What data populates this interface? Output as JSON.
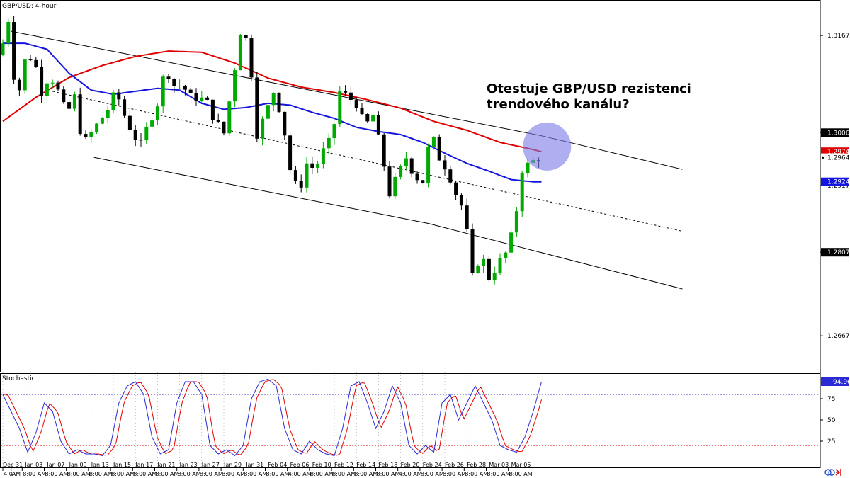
{
  "chart_data": {
    "type": "candlestick",
    "symbol_label": "GBP/USD: 4-hour",
    "annotation": [
      "Otestuje GBP/USD rezistenci",
      "trendového kanálu?"
    ],
    "ylim": [
      1.2608,
      1.3227
    ],
    "price_ticks": [
      "1.31679",
      "1.30062",
      "1.29179",
      "1.28070",
      "1.26679"
    ],
    "price_labels": [
      {
        "value": 1.30062,
        "text": "1.30062",
        "color": "#ffffff",
        "bg": "#000000"
      },
      {
        "value": 1.29744,
        "text": "1.29744",
        "color": "#ffffff",
        "bg": "#e00000"
      },
      {
        "value": 1.29645,
        "text": "1.29645",
        "color": "#000000",
        "bg": "#ffffff",
        "marker": true
      },
      {
        "value": 1.29243,
        "text": "1.29243",
        "color": "#ffffff",
        "bg": "#1515e0"
      },
      {
        "value": 1.2807,
        "text": "1.28070",
        "color": "#ffffff",
        "bg": "#000000"
      }
    ],
    "date_ticks": [
      {
        "label": "Dec 31",
        "x": 0
      },
      {
        "label": "Jan 03",
        "x": 4
      },
      {
        "label": "Jan 07",
        "x": 8
      },
      {
        "label": "Jan 09",
        "x": 12
      },
      {
        "label": "Jan 13",
        "x": 16
      },
      {
        "label": "Jan 15",
        "x": 20
      },
      {
        "label": "Jan 17",
        "x": 24
      },
      {
        "label": "Jan 21",
        "x": 28
      },
      {
        "label": "Jan 23",
        "x": 32
      },
      {
        "label": "Jan 27",
        "x": 36
      },
      {
        "label": "Jan 29",
        "x": 40
      },
      {
        "label": "Jan 31",
        "x": 44
      },
      {
        "label": "Feb 04",
        "x": 48
      },
      {
        "label": "Feb 06",
        "x": 52
      },
      {
        "label": "Feb 10",
        "x": 56
      },
      {
        "label": "Feb 12",
        "x": 60
      },
      {
        "label": "Feb 14",
        "x": 64
      },
      {
        "label": "Feb 18",
        "x": 68
      },
      {
        "label": "Feb 20",
        "x": 72
      },
      {
        "label": "Feb 24",
        "x": 76
      },
      {
        "label": "Feb 26",
        "x": 80
      },
      {
        "label": "Feb 28",
        "x": 84
      },
      {
        "label": "Mar 03",
        "x": 88
      },
      {
        "label": "Mar 05",
        "x": 92
      }
    ],
    "time_ticks": [
      {
        "label": "4:0",
        "x": 0
      },
      {
        "label": "AM",
        "x": 1.5
      },
      {
        "label": "8:00 AM",
        "x": 3.5
      },
      {
        "label": "8:00 AM",
        "x": 7.5
      },
      {
        "label": "8:00 AM",
        "x": 11.5
      },
      {
        "label": "8:00 AM",
        "x": 15.5
      },
      {
        "label": "8:00 AM",
        "x": 19.5
      },
      {
        "label": "8:00 AM",
        "x": 23.5
      },
      {
        "label": "8:00 AM",
        "x": 27.5
      },
      {
        "label": "8:00 AM",
        "x": 31.5
      },
      {
        "label": "8:00 AM",
        "x": 35.5
      },
      {
        "label": "8:00 AM",
        "x": 39.5
      },
      {
        "label": "8:00 AM",
        "x": 43.5
      },
      {
        "label": "8:00 AM",
        "x": 47.5
      },
      {
        "label": "4:00 AM",
        "x": 51.5
      },
      {
        "label": "8:00 AM",
        "x": 55.5
      },
      {
        "label": "8:00 AM",
        "x": 59.5
      },
      {
        "label": "8:00 AM",
        "x": 63.5
      },
      {
        "label": "8:00 AM",
        "x": 67.5
      },
      {
        "label": "4:00 AM",
        "x": 71.5
      },
      {
        "label": "8:00 AM",
        "x": 75.5
      },
      {
        "label": "8:00 AM",
        "x": 79.5
      },
      {
        "label": "8:00 AM",
        "x": 83.5
      },
      {
        "label": "8:00 AM",
        "x": 87.5
      },
      {
        "label": "8:00 AM",
        "x": 91.5
      }
    ],
    "close_anchors": [
      [
        0,
        1.3135
      ],
      [
        1.5,
        1.3195
      ],
      [
        3,
        1.3055
      ],
      [
        4.5,
        1.3125
      ],
      [
        6,
        1.3135
      ],
      [
        7.5,
        1.3075
      ],
      [
        9,
        1.3105
      ],
      [
        10.5,
        1.3075
      ],
      [
        12,
        1.3035
      ],
      [
        13.5,
        1.3065
      ],
      [
        15,
        1.2985
      ],
      [
        16.5,
        1.3005
      ],
      [
        18,
        1.3025
      ],
      [
        19.5,
        1.3045
      ],
      [
        21,
        1.3075
      ],
      [
        22.5,
        1.3035
      ],
      [
        24,
        1.3005
      ],
      [
        25.5,
        1.2985
      ],
      [
        27,
        1.3025
      ],
      [
        28.5,
        1.3055
      ],
      [
        30,
        1.3115
      ],
      [
        31.5,
        1.3085
      ],
      [
        33,
        1.3085
      ],
      [
        34.5,
        1.3065
      ],
      [
        36,
        1.3065
      ],
      [
        37.5,
        1.3055
      ],
      [
        39,
        1.3025
      ],
      [
        40.5,
        1.3005
      ],
      [
        42,
        1.3085
      ],
      [
        43.5,
        1.3175
      ],
      [
        45,
        1.3155
      ],
      [
        46.5,
        1.3005
      ],
      [
        48,
        1.3035
      ],
      [
        49.5,
        1.3075
      ],
      [
        51,
        1.3035
      ],
      [
        52.5,
        1.2945
      ],
      [
        54,
        1.2905
      ],
      [
        55.5,
        1.2955
      ],
      [
        57,
        1.2945
      ],
      [
        58.5,
        1.2975
      ],
      [
        60,
        1.2995
      ],
      [
        61.5,
        1.3075
      ],
      [
        63,
        1.3065
      ],
      [
        64.5,
        1.3055
      ],
      [
        66,
        1.3015
      ],
      [
        67.5,
        1.3035
      ],
      [
        69,
        1.2975
      ],
      [
        70.5,
        1.2905
      ],
      [
        72,
        1.2935
      ],
      [
        73.5,
        1.2965
      ],
      [
        75,
        1.2935
      ],
      [
        76.5,
        1.2925
      ],
      [
        78,
        1.3005
      ],
      [
        79.5,
        1.2965
      ],
      [
        81,
        1.2945
      ],
      [
        82.5,
        1.2905
      ],
      [
        84,
        1.2875
      ],
      [
        85.5,
        1.2765
      ],
      [
        87,
        1.2805
      ],
      [
        88.5,
        1.2765
      ],
      [
        90,
        1.2785
      ],
      [
        91.5,
        1.2805
      ],
      [
        93,
        1.2845
      ],
      [
        94.5,
        1.2945
      ],
      [
        96,
        1.2955
      ],
      [
        97.5,
        1.2965
      ]
    ],
    "ma_red": [
      [
        0,
        1.3025
      ],
      [
        6,
        1.3065
      ],
      [
        12,
        1.3098
      ],
      [
        18,
        1.3118
      ],
      [
        24,
        1.3133
      ],
      [
        30,
        1.3142
      ],
      [
        36,
        1.314
      ],
      [
        42,
        1.3122
      ],
      [
        48,
        1.3097
      ],
      [
        54,
        1.3082
      ],
      [
        60,
        1.3073
      ],
      [
        66,
        1.3061
      ],
      [
        72,
        1.3047
      ],
      [
        78,
        1.3025
      ],
      [
        84,
        1.301
      ],
      [
        90,
        1.299
      ],
      [
        96,
        1.2978
      ],
      [
        97.5,
        1.29744
      ]
    ],
    "ma_blue": [
      [
        0,
        1.3155
      ],
      [
        4,
        1.3155
      ],
      [
        8,
        1.3145
      ],
      [
        12,
        1.3105
      ],
      [
        16,
        1.3077
      ],
      [
        20,
        1.307
      ],
      [
        24,
        1.3075
      ],
      [
        28,
        1.308
      ],
      [
        32,
        1.3077
      ],
      [
        36,
        1.3055
      ],
      [
        40,
        1.3045
      ],
      [
        44,
        1.3048
      ],
      [
        48,
        1.3055
      ],
      [
        52,
        1.3052
      ],
      [
        56,
        1.304
      ],
      [
        60,
        1.303
      ],
      [
        64,
        1.3015
      ],
      [
        68,
        1.3008
      ],
      [
        72,
        1.3003
      ],
      [
        76,
        1.299
      ],
      [
        80,
        1.2972
      ],
      [
        84,
        1.2955
      ],
      [
        88,
        1.2942
      ],
      [
        92,
        1.2928
      ],
      [
        96,
        1.29243
      ],
      [
        97.5,
        1.29243
      ]
    ],
    "channel_upper": [
      [
        1.5,
        1.3175
      ],
      [
        97.5,
        1.3001
      ],
      [
        123,
        1.2945
      ]
    ],
    "channel_lower": [
      [
        16.5,
        1.2965
      ],
      [
        77,
        1.2855
      ],
      [
        123,
        1.2746
      ]
    ],
    "channel_mid": [
      [
        9,
        1.3075
      ],
      [
        123,
        1.2842
      ]
    ],
    "highlight_circle": {
      "x": 98.5,
      "price": 1.2983,
      "color": "#7a78e8",
      "opacity": 0.6
    },
    "stochastic": {
      "label": "Stochastic",
      "current_value": "94.96",
      "ylim": [
        0,
        100
      ],
      "tick_labels": [
        "75",
        "50",
        "25"
      ],
      "levels": [
        {
          "value": 80,
          "color": "#3d3dcc"
        },
        {
          "value": 20,
          "color": "#e00000"
        }
      ],
      "main_anchors": [
        [
          0,
          80
        ],
        [
          1.5,
          60
        ],
        [
          3,
          40
        ],
        [
          4.5,
          12
        ],
        [
          6,
          35
        ],
        [
          7.5,
          70
        ],
        [
          9,
          60
        ],
        [
          10.5,
          25
        ],
        [
          12,
          10
        ],
        [
          13.5,
          15
        ],
        [
          15,
          10
        ],
        [
          16.5,
          10
        ],
        [
          18,
          8
        ],
        [
          19.5,
          20
        ],
        [
          21,
          70
        ],
        [
          22.5,
          90
        ],
        [
          24,
          95
        ],
        [
          25.5,
          80
        ],
        [
          27,
          30
        ],
        [
          28.5,
          10
        ],
        [
          30,
          15
        ],
        [
          31.5,
          70
        ],
        [
          33,
          95
        ],
        [
          34.5,
          95
        ],
        [
          36,
          80
        ],
        [
          37.5,
          20
        ],
        [
          39,
          10
        ],
        [
          40.5,
          15
        ],
        [
          42,
          8
        ],
        [
          43.5,
          20
        ],
        [
          45,
          75
        ],
        [
          46.5,
          95
        ],
        [
          48,
          98
        ],
        [
          49.5,
          90
        ],
        [
          51,
          40
        ],
        [
          52.5,
          15
        ],
        [
          54,
          10
        ],
        [
          55.5,
          25
        ],
        [
          57,
          15
        ],
        [
          58.5,
          10
        ],
        [
          60,
          8
        ],
        [
          61.5,
          40
        ],
        [
          63,
          90
        ],
        [
          64.5,
          95
        ],
        [
          66,
          70
        ],
        [
          67.5,
          40
        ],
        [
          69,
          60
        ],
        [
          70.5,
          90
        ],
        [
          72,
          70
        ],
        [
          73.5,
          20
        ],
        [
          75,
          10
        ],
        [
          76.5,
          20
        ],
        [
          78,
          12
        ],
        [
          79.5,
          70
        ],
        [
          81,
          80
        ],
        [
          82.5,
          50
        ],
        [
          84,
          70
        ],
        [
          85.5,
          90
        ],
        [
          87,
          70
        ],
        [
          88.5,
          50
        ],
        [
          90,
          20
        ],
        [
          91.5,
          15
        ],
        [
          93,
          12
        ],
        [
          94.5,
          30
        ],
        [
          96,
          60
        ],
        [
          97.5,
          95
        ]
      ]
    }
  },
  "colors": {
    "bull_candle": "#00aa00",
    "bear_candle": "#000000",
    "ma_red": "#e00000",
    "ma_blue": "#1515e0",
    "stoch_main": "#2b2bd6",
    "stoch_signal": "#e00000"
  }
}
